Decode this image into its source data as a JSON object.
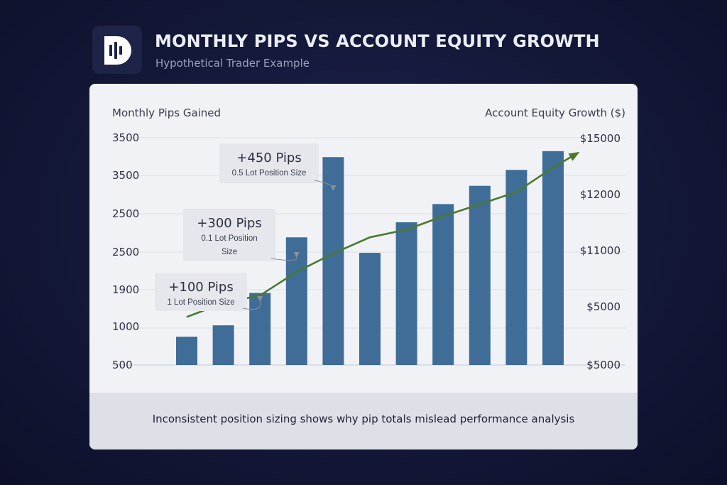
{
  "header": {
    "logo_icon": "bar-chart-logo-icon",
    "title": "MONTHLY PIPS VS ACCOUNT EQUITY GROWTH",
    "subtitle": "Hypothetical Trader Example"
  },
  "footer": {
    "caption": "Inconsistent position sizing shows why pip totals mislead performance analysis"
  },
  "colors": {
    "background": "#141838",
    "bar": "#3f6d98",
    "line": "#4a7a2e",
    "card": "#f1f2f5"
  },
  "chart_data": {
    "type": "bar",
    "left_axis_label": "Monthly Pips Gained",
    "right_axis_label": "Account Equity Growth ($)",
    "left_ticks": [
      "500",
      "1000",
      "1900",
      "2500",
      "2500",
      "3500",
      "3500"
    ],
    "right_ticks": [
      "$5000",
      "$5000",
      "$11000",
      "$12000",
      "$15000"
    ],
    "grid": true,
    "bars": {
      "name": "Monthly Pips",
      "values": [
        620,
        870,
        1580,
        2800,
        4560,
        2460,
        3130,
        3530,
        3930,
        4280,
        4690
      ]
    },
    "line": {
      "name": "Account Equity",
      "values": [
        5000,
        5580,
        5900,
        6880,
        7650,
        8320,
        8640,
        9200,
        9700,
        10210,
        11230
      ],
      "arrow": true
    },
    "annotations": [
      {
        "title": "+100 Pips",
        "subtitle_lines": [
          "1 Lot Position Size"
        ],
        "bar_index": 2
      },
      {
        "title": "+300 Pips",
        "subtitle_lines": [
          "0.1 Lot Position",
          "Size"
        ],
        "bar_index": 3
      },
      {
        "title": "+450 Pips",
        "subtitle_lines": [
          "0.5 Lot Position Size"
        ],
        "bar_index": 4
      }
    ]
  }
}
